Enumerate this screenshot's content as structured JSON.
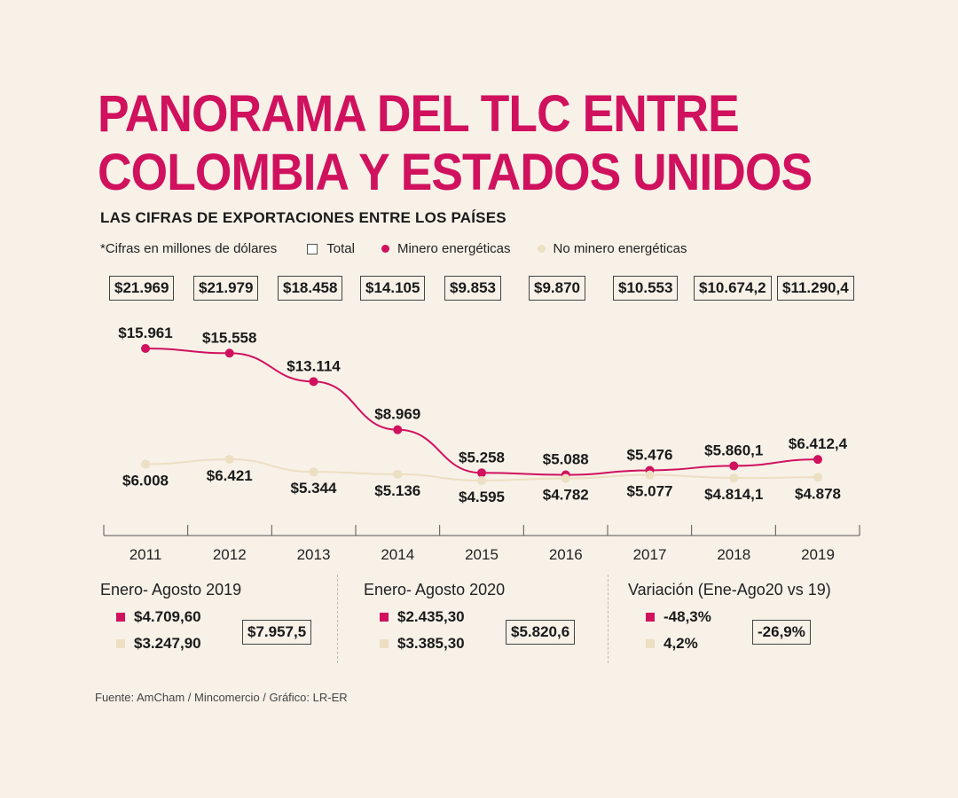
{
  "header": {
    "title_line1": "PANORAMA DEL TLC ENTRE",
    "title_line2": "COLOMBIA Y ESTADOS UNIDOS",
    "subtitle": "LAS CIFRAS DE EXPORTACIONES ENTRE LOS PAÍSES",
    "note": "*Cifras en millones de dólares"
  },
  "legend": {
    "total": "Total",
    "minero": "Minero energéticas",
    "no_minero": "No minero energéticas"
  },
  "colors": {
    "minero": "#d0115e",
    "no_minero": "#ecdfc2",
    "axis": "#555555",
    "title": "#d0115e"
  },
  "chart_data": {
    "type": "line",
    "categories": [
      "2011",
      "2012",
      "2013",
      "2014",
      "2015",
      "2016",
      "2017",
      "2018",
      "2019"
    ],
    "total_labels": [
      "$21.969",
      "$21.979",
      "$18.458",
      "$14.105",
      "$9.853",
      "$9.870",
      "$10.553",
      "$10.674,2",
      "$11.290,4"
    ],
    "series": [
      {
        "name": "Minero energéticas",
        "values": [
          15961,
          15558,
          13114,
          8969,
          5258,
          5088,
          5476,
          5860.1,
          6412.4
        ],
        "labels": [
          "$15.961",
          "$15.558",
          "$13.114",
          "$8.969",
          "$5.258",
          "$5.088",
          "$5.476",
          "$5.860,1",
          "$6.412,4"
        ]
      },
      {
        "name": "No minero energéticas",
        "values": [
          6008,
          6421,
          5344,
          5136,
          4595,
          4782,
          5077,
          4814.1,
          4878
        ],
        "labels": [
          "$6.008",
          "$6.421",
          "$5.344",
          "$5.136",
          "$4.595",
          "$4.782",
          "$5.077",
          "$4.814,1",
          "$4.878"
        ]
      }
    ],
    "ylim": [
      4000,
      16000
    ]
  },
  "summary": [
    {
      "period": "Enero- Agosto 2019",
      "minero": "$4.709,60",
      "no_minero": "$3.247,90",
      "total": "$7.957,5"
    },
    {
      "period": "Enero- Agosto 2020",
      "minero": "$2.435,30",
      "no_minero": "$3.385,30",
      "total": "$5.820,6"
    },
    {
      "period": "Variación (Ene-Ago20 vs 19)",
      "minero": "-48,3%",
      "no_minero": "4,2%",
      "total": "-26,9%"
    }
  ],
  "source": "Fuente: AmCham / Mincomercio / Gráfico: LR-ER"
}
